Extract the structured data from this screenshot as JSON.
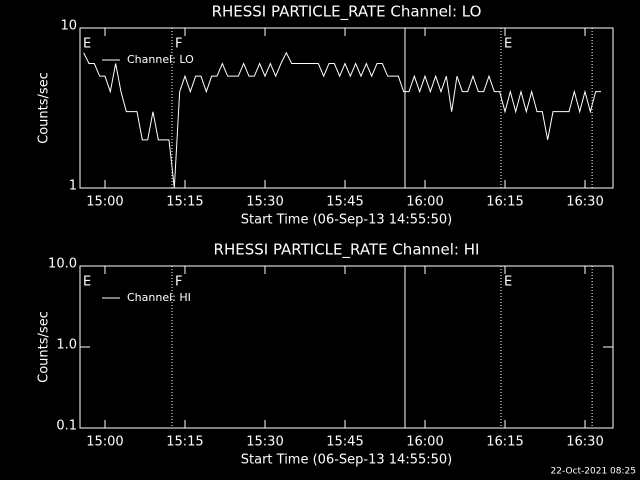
{
  "charts": [
    {
      "type": "line",
      "title": "RHESSI PARTICLE_RATE Channel: LO",
      "xlabel": "Start Time (06-Sep-13 14:55:50)",
      "ylabel": "Counts/sec",
      "log_y": true,
      "ylim": [
        1,
        10
      ],
      "yticks": [
        1,
        10
      ],
      "xlim": [
        "14:55:19",
        "16:35:15"
      ],
      "xticks": [
        "15:00",
        "15:15",
        "15:30",
        "15:45",
        "16:00",
        "16:15",
        "16:30"
      ],
      "events": [
        {
          "x": "14:55:19",
          "label": "E",
          "style": "dotted"
        },
        {
          "x": "15:12:34",
          "label": "F",
          "style": "dotted"
        },
        {
          "x": "15:56:15",
          "style": "solid"
        },
        {
          "x": "16:14:15",
          "label": "E",
          "style": "dotted"
        },
        {
          "x": "16:31:20",
          "style": "dotted"
        }
      ],
      "legend": "top-left",
      "series": [
        {
          "name": "Channel: LO",
          "color": "#ffffff",
          "x": [
            "14:56",
            "14:57",
            "14:58",
            "14:59",
            "15:00",
            "15:01",
            "15:02",
            "15:03",
            "15:04",
            "15:05",
            "15:06",
            "15:07",
            "15:08",
            "15:09",
            "15:10",
            "15:11",
            "15:12",
            "15:13",
            "15:14",
            "15:15",
            "15:16",
            "15:17",
            "15:18",
            "15:19",
            "15:20",
            "15:21",
            "15:22",
            "15:23",
            "15:24",
            "15:25",
            "15:26",
            "15:27",
            "15:28",
            "15:29",
            "15:30",
            "15:31",
            "15:32",
            "15:33",
            "15:34",
            "15:35",
            "15:36",
            "15:37",
            "15:38",
            "15:39",
            "15:40",
            "15:41",
            "15:42",
            "15:43",
            "15:44",
            "15:45",
            "15:46",
            "15:47",
            "15:48",
            "15:49",
            "15:50",
            "15:51",
            "15:52",
            "15:53",
            "15:54",
            "15:55",
            "15:56",
            "15:57",
            "15:58",
            "15:59",
            "16:00",
            "16:01",
            "16:02",
            "16:03",
            "16:04",
            "16:05",
            "16:06",
            "16:07",
            "16:08",
            "16:09",
            "16:10",
            "16:11",
            "16:12",
            "16:13",
            "16:14",
            "16:15",
            "16:16",
            "16:17",
            "16:18",
            "16:19",
            "16:20",
            "16:21",
            "16:22",
            "16:23",
            "16:24",
            "16:25",
            "16:26",
            "16:27",
            "16:28",
            "16:29",
            "16:30",
            "16:31",
            "16:32",
            "16:33"
          ],
          "values": [
            7,
            6,
            6,
            5,
            5,
            4,
            6,
            4,
            3,
            3,
            3,
            2,
            2,
            3,
            2,
            2,
            2,
            1,
            4,
            5,
            4,
            5,
            5,
            4,
            5,
            5,
            6,
            5,
            5,
            5,
            6,
            5,
            5,
            6,
            5,
            6,
            5,
            6,
            7,
            6,
            6,
            6,
            6,
            6,
            6,
            5,
            6,
            6,
            5,
            6,
            5,
            6,
            5,
            6,
            5,
            6,
            6,
            5,
            5,
            5,
            4,
            4,
            5,
            4,
            5,
            4,
            5,
            4,
            5,
            3,
            5,
            4,
            4,
            5,
            4,
            4,
            5,
            4,
            4,
            3,
            4,
            3,
            4,
            3,
            4,
            3,
            3,
            2,
            3,
            3,
            3,
            3,
            4,
            3,
            4,
            3,
            4,
            4
          ]
        }
      ]
    },
    {
      "type": "line",
      "title": "RHESSI PARTICLE_RATE Channel: HI",
      "xlabel": "Start Time (06-Sep-13 14:55:50)",
      "ylabel": "Counts/sec",
      "log_y": true,
      "ylim": [
        0.1,
        10
      ],
      "yticks": [
        0.1,
        {
          "value": 1,
          "label": "1.0"
        },
        {
          "value": 10,
          "label": "10.0"
        }
      ],
      "xlim": [
        "14:55:19",
        "16:35:15"
      ],
      "xticks": [
        "15:00",
        "15:15",
        "15:30",
        "15:45",
        "16:00",
        "16:15",
        "16:30"
      ],
      "events": [
        {
          "x": "14:55:19",
          "label": "E",
          "style": "dotted"
        },
        {
          "x": "15:12:34",
          "label": "F",
          "style": "dotted"
        },
        {
          "x": "15:56:15",
          "style": "solid"
        },
        {
          "x": "16:14:15",
          "label": "E",
          "style": "dotted"
        },
        {
          "x": "16:31:20",
          "style": "dotted"
        }
      ],
      "legend": "top-left",
      "series": [
        {
          "name": "Channel: HI",
          "color": "#ffffff",
          "x": [],
          "values": []
        }
      ]
    }
  ],
  "footer": "22-Oct-2021 08:25"
}
